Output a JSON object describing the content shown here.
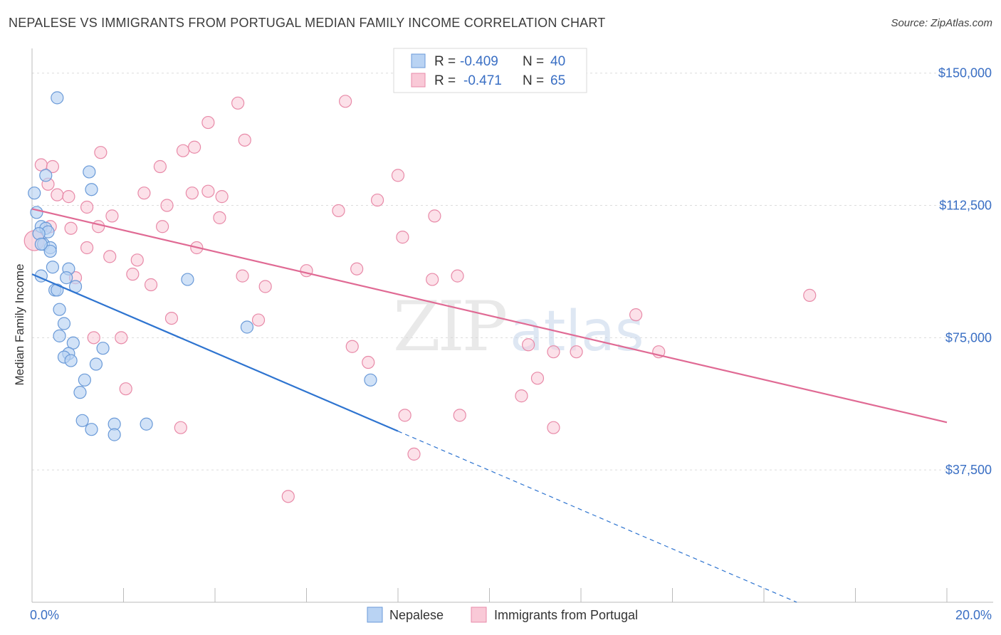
{
  "header": {
    "title": "NEPALESE VS IMMIGRANTS FROM PORTUGAL MEDIAN FAMILY INCOME CORRELATION CHART",
    "source": "Source: ZipAtlas.com"
  },
  "colors": {
    "blue_fill": "#b9d3f3",
    "blue_stroke": "#6a9ad8",
    "blue_line": "#2e74d0",
    "pink_fill": "#f9c9d7",
    "pink_stroke": "#e88aa8",
    "pink_line": "#e06a94",
    "tick_text": "#3a6fc4",
    "grid": "#dcdcdc"
  },
  "legend": {
    "rows": [
      {
        "r_label": "R =",
        "r_value": "-0.409",
        "n_label": "N =",
        "n_value": "40"
      },
      {
        "r_label": "R =",
        "r_value": "-0.471",
        "n_label": "N =",
        "n_value": "65"
      }
    ]
  },
  "watermark": {
    "zip": "ZIP",
    "atlas": "atlas"
  },
  "chart_data": {
    "type": "scatter",
    "title": "NEPALESE VS IMMIGRANTS FROM PORTUGAL MEDIAN FAMILY INCOME CORRELATION CHART",
    "xlabel": "",
    "ylabel": "Median Family Income",
    "xlim": [
      0,
      20
    ],
    "ylim": [
      0,
      157000
    ],
    "x_tick_labels": [
      "0.0%",
      "20.0%"
    ],
    "y_ticks": [
      37500,
      75000,
      112500,
      150000
    ],
    "y_tick_labels": [
      "$37,500",
      "$75,000",
      "$112,500",
      "$150,000"
    ],
    "grid": true,
    "legend_position": "top-center",
    "series": [
      {
        "name": "Nepalese",
        "color": "#6a9ad8",
        "points": [
          [
            0.55,
            143000
          ],
          [
            0.05,
            116000
          ],
          [
            1.25,
            122000
          ],
          [
            1.3,
            117000
          ],
          [
            0.3,
            121000
          ],
          [
            0.1,
            110500
          ],
          [
            0.2,
            106500
          ],
          [
            0.3,
            106000
          ],
          [
            0.35,
            105000
          ],
          [
            0.15,
            104500
          ],
          [
            0.25,
            101500
          ],
          [
            0.4,
            100500
          ],
          [
            0.4,
            99500
          ],
          [
            0.45,
            95000
          ],
          [
            0.8,
            94500
          ],
          [
            0.2,
            92500
          ],
          [
            0.75,
            92000
          ],
          [
            3.4,
            91500
          ],
          [
            0.95,
            89500
          ],
          [
            0.5,
            88500
          ],
          [
            0.55,
            88500
          ],
          [
            0.6,
            83000
          ],
          [
            0.7,
            79000
          ],
          [
            4.7,
            78000
          ],
          [
            0.6,
            75500
          ],
          [
            0.9,
            73500
          ],
          [
            1.55,
            72000
          ],
          [
            0.8,
            70500
          ],
          [
            0.7,
            69500
          ],
          [
            0.85,
            68500
          ],
          [
            1.4,
            67500
          ],
          [
            1.15,
            63000
          ],
          [
            7.4,
            63000
          ],
          [
            1.05,
            59500
          ],
          [
            1.1,
            51500
          ],
          [
            1.8,
            50500
          ],
          [
            2.5,
            50500
          ],
          [
            1.3,
            49000
          ],
          [
            1.8,
            47500
          ],
          [
            0.2,
            101500
          ]
        ],
        "trend": {
          "x_start": 0.0,
          "y_start": 93000,
          "x_solid_end": 8.0,
          "x_dashed_end": 20.0
        }
      },
      {
        "name": "Immigrants from Portugal",
        "color": "#e88aa8",
        "points": [
          [
            0.05,
            102500
          ],
          [
            0.2,
            124000
          ],
          [
            0.45,
            123500
          ],
          [
            0.35,
            118500
          ],
          [
            0.55,
            115500
          ],
          [
            0.8,
            115000
          ],
          [
            0.4,
            106500
          ],
          [
            0.85,
            106000
          ],
          [
            1.2,
            112000
          ],
          [
            1.45,
            106500
          ],
          [
            1.75,
            109500
          ],
          [
            1.2,
            100500
          ],
          [
            1.7,
            98000
          ],
          [
            2.3,
            97000
          ],
          [
            2.2,
            93000
          ],
          [
            2.6,
            90000
          ],
          [
            1.5,
            127500
          ],
          [
            2.45,
            116000
          ],
          [
            2.8,
            123500
          ],
          [
            2.95,
            112500
          ],
          [
            2.85,
            106500
          ],
          [
            3.3,
            128000
          ],
          [
            3.55,
            129000
          ],
          [
            3.5,
            116000
          ],
          [
            3.85,
            136000
          ],
          [
            3.85,
            116500
          ],
          [
            4.15,
            115000
          ],
          [
            4.1,
            109000
          ],
          [
            3.6,
            100500
          ],
          [
            4.5,
            141500
          ],
          [
            4.65,
            131000
          ],
          [
            4.6,
            92500
          ],
          [
            5.1,
            89500
          ],
          [
            3.05,
            80500
          ],
          [
            4.95,
            80000
          ],
          [
            1.35,
            75000
          ],
          [
            1.95,
            75000
          ],
          [
            2.05,
            60500
          ],
          [
            3.25,
            49500
          ],
          [
            6.0,
            94000
          ],
          [
            6.7,
            111000
          ],
          [
            6.85,
            142000
          ],
          [
            7.1,
            94500
          ],
          [
            7.55,
            114000
          ],
          [
            7.0,
            72500
          ],
          [
            8.0,
            121000
          ],
          [
            8.1,
            103500
          ],
          [
            8.8,
            109500
          ],
          [
            8.75,
            91500
          ],
          [
            9.3,
            92500
          ],
          [
            7.35,
            68000
          ],
          [
            8.15,
            53000
          ],
          [
            9.35,
            53000
          ],
          [
            8.35,
            42000
          ],
          [
            5.6,
            30000
          ],
          [
            10.85,
            73000
          ],
          [
            10.7,
            58500
          ],
          [
            11.05,
            63500
          ],
          [
            11.4,
            71000
          ],
          [
            11.9,
            71000
          ],
          [
            11.4,
            49500
          ],
          [
            13.2,
            81500
          ],
          [
            13.7,
            71000
          ],
          [
            17.0,
            87000
          ],
          [
            0.95,
            92000
          ]
        ],
        "trend": {
          "x_start": 0.0,
          "y_start": 111500,
          "x_end": 20.0,
          "y_end": 51000
        }
      }
    ]
  },
  "bottom_legend": [
    {
      "label": "Nepalese"
    },
    {
      "label": "Immigrants from Portugal"
    }
  ]
}
